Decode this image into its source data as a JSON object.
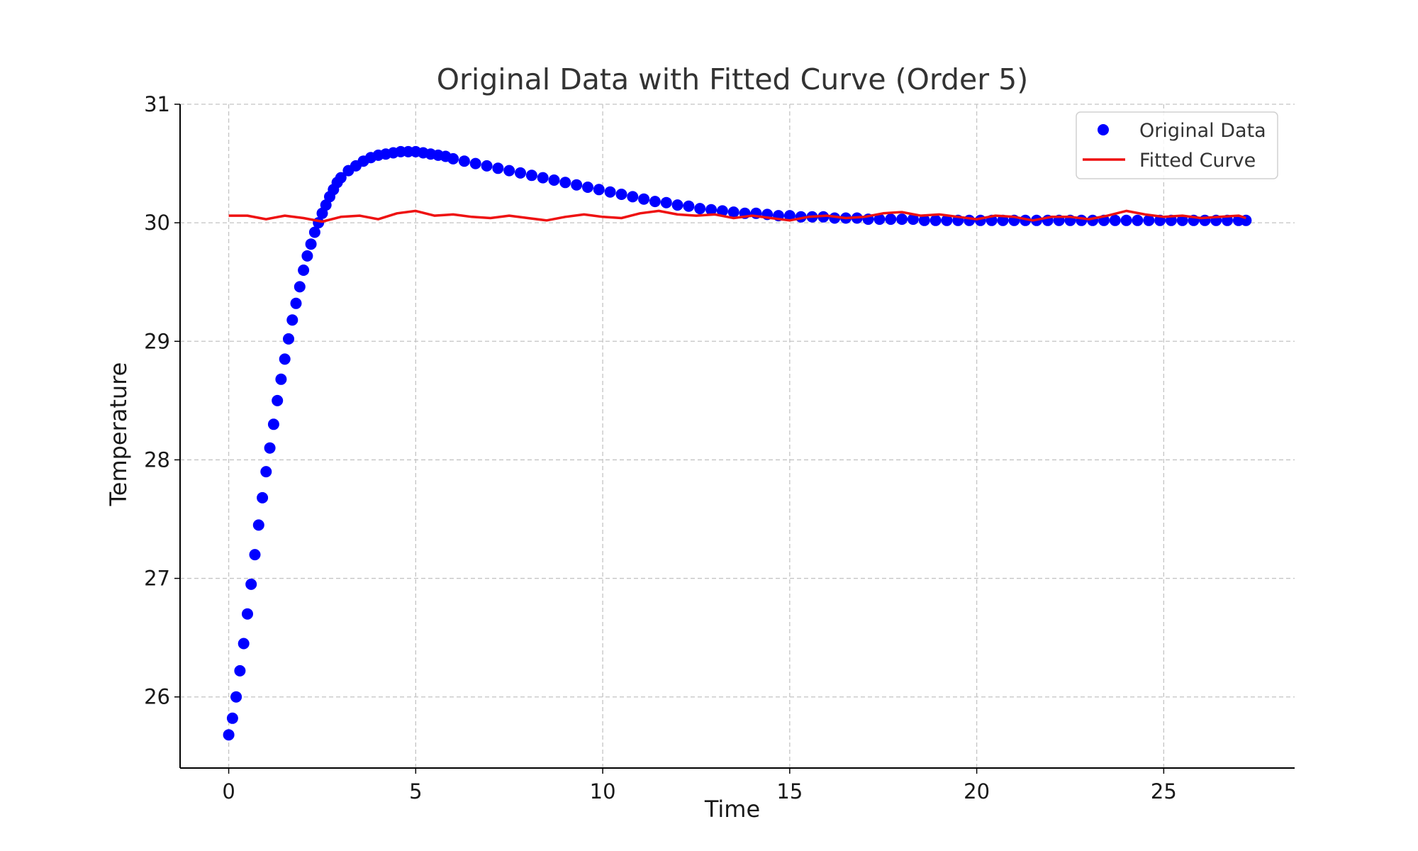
{
  "chart_data": {
    "type": "scatter",
    "title": "Original Data with Fitted Curve (Order 5)",
    "xlabel": "Time",
    "ylabel": "Temperature",
    "xlim": [
      -1.3,
      28.5
    ],
    "ylim": [
      25.4,
      31.0
    ],
    "xticks": [
      0,
      5,
      10,
      15,
      20,
      25
    ],
    "yticks": [
      26,
      27,
      28,
      29,
      30,
      31
    ],
    "grid": true,
    "legend_position": "top-right",
    "series": [
      {
        "name": "Original Data",
        "kind": "scatter",
        "color": "#0000ff",
        "x": [
          0.0,
          0.1,
          0.2,
          0.3,
          0.4,
          0.5,
          0.6,
          0.7,
          0.8,
          0.9,
          1.0,
          1.1,
          1.2,
          1.3,
          1.4,
          1.5,
          1.6,
          1.7,
          1.8,
          1.9,
          2.0,
          2.1,
          2.2,
          2.3,
          2.4,
          2.5,
          2.6,
          2.7,
          2.8,
          2.9,
          3.0,
          3.2,
          3.4,
          3.6,
          3.8,
          4.0,
          4.2,
          4.4,
          4.6,
          4.8,
          5.0,
          5.2,
          5.4,
          5.6,
          5.8,
          6.0,
          6.3,
          6.6,
          6.9,
          7.2,
          7.5,
          7.8,
          8.1,
          8.4,
          8.7,
          9.0,
          9.3,
          9.6,
          9.9,
          10.2,
          10.5,
          10.8,
          11.1,
          11.4,
          11.7,
          12.0,
          12.3,
          12.6,
          12.9,
          13.2,
          13.5,
          13.8,
          14.1,
          14.4,
          14.7,
          15.0,
          15.3,
          15.6,
          15.9,
          16.2,
          16.5,
          16.8,
          17.1,
          17.4,
          17.7,
          18.0,
          18.3,
          18.6,
          18.9,
          19.2,
          19.5,
          19.8,
          20.1,
          20.4,
          20.7,
          21.0,
          21.3,
          21.6,
          21.9,
          22.2,
          22.5,
          22.8,
          23.1,
          23.4,
          23.7,
          24.0,
          24.3,
          24.6,
          24.9,
          25.2,
          25.5,
          25.8,
          26.1,
          26.4,
          26.7,
          27.0,
          27.2
        ],
        "y": [
          25.68,
          25.82,
          26.0,
          26.22,
          26.45,
          26.7,
          26.95,
          27.2,
          27.45,
          27.68,
          27.9,
          28.1,
          28.3,
          28.5,
          28.68,
          28.85,
          29.02,
          29.18,
          29.32,
          29.46,
          29.6,
          29.72,
          29.82,
          29.92,
          30.0,
          30.08,
          30.15,
          30.22,
          30.28,
          30.34,
          30.38,
          30.44,
          30.48,
          30.52,
          30.55,
          30.57,
          30.58,
          30.59,
          30.6,
          30.6,
          30.6,
          30.59,
          30.58,
          30.57,
          30.56,
          30.54,
          30.52,
          30.5,
          30.48,
          30.46,
          30.44,
          30.42,
          30.4,
          30.38,
          30.36,
          30.34,
          30.32,
          30.3,
          30.28,
          30.26,
          30.24,
          30.22,
          30.2,
          30.18,
          30.17,
          30.15,
          30.14,
          30.12,
          30.11,
          30.1,
          30.09,
          30.08,
          30.08,
          30.07,
          30.06,
          30.06,
          30.05,
          30.05,
          30.05,
          30.04,
          30.04,
          30.04,
          30.03,
          30.03,
          30.03,
          30.03,
          30.03,
          30.02,
          30.02,
          30.02,
          30.02,
          30.02,
          30.02,
          30.02,
          30.02,
          30.02,
          30.02,
          30.02,
          30.02,
          30.02,
          30.02,
          30.02,
          30.02,
          30.02,
          30.02,
          30.02,
          30.02,
          30.02,
          30.02,
          30.02,
          30.02,
          30.02,
          30.02,
          30.02,
          30.02,
          30.02,
          30.02
        ]
      },
      {
        "name": "Fitted Curve",
        "kind": "line",
        "color": "#ee1111",
        "x": [
          0.0,
          0.5,
          1.0,
          1.5,
          2.0,
          2.5,
          3.0,
          3.5,
          4.0,
          4.5,
          5.0,
          5.5,
          6.0,
          6.5,
          7.0,
          7.5,
          8.0,
          8.5,
          9.0,
          9.5,
          10.0,
          10.5,
          11.0,
          11.5,
          12.0,
          12.5,
          13.0,
          13.5,
          14.0,
          14.5,
          15.0,
          15.5,
          16.0,
          16.5,
          17.0,
          17.5,
          18.0,
          18.5,
          19.0,
          19.5,
          20.0,
          20.5,
          21.0,
          21.5,
          22.0,
          22.5,
          23.0,
          23.5,
          24.0,
          24.5,
          25.0,
          25.5,
          26.0,
          26.5,
          27.0,
          27.2
        ],
        "y": [
          30.06,
          30.06,
          30.03,
          30.06,
          30.04,
          30.01,
          30.05,
          30.06,
          30.03,
          30.08,
          30.1,
          30.06,
          30.07,
          30.05,
          30.04,
          30.06,
          30.04,
          30.02,
          30.05,
          30.07,
          30.05,
          30.04,
          30.08,
          30.1,
          30.07,
          30.06,
          30.07,
          30.04,
          30.06,
          30.04,
          30.02,
          30.05,
          30.06,
          30.04,
          30.05,
          30.08,
          30.09,
          30.06,
          30.07,
          30.05,
          30.03,
          30.06,
          30.05,
          30.02,
          30.05,
          30.05,
          30.03,
          30.06,
          30.1,
          30.07,
          30.05,
          30.06,
          30.04,
          30.05,
          30.06,
          30.04
        ]
      }
    ]
  }
}
